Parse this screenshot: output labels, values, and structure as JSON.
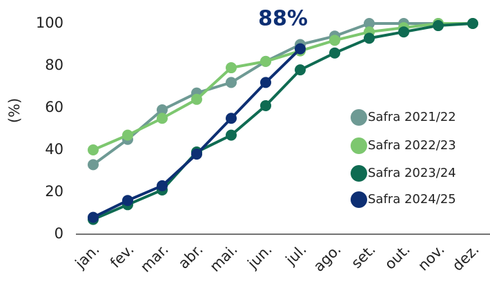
{
  "chart_data": {
    "type": "line",
    "y_label": "(%)",
    "annotation": "88%",
    "categories": [
      "jan.",
      "fev.",
      "mar.",
      "abr.",
      "mai.",
      "jun.",
      "jul.",
      "ago.",
      "set.",
      "out.",
      "nov.",
      "dez."
    ],
    "series": [
      {
        "name": "Safra 2021/22",
        "color": "#6e9a94",
        "values": [
          33,
          45,
          59,
          67,
          72,
          82,
          90,
          94,
          100,
          100,
          100,
          100
        ]
      },
      {
        "name": "Safra 2022/23",
        "color": "#7dc76f",
        "values": [
          40,
          47,
          55,
          64,
          79,
          82,
          87,
          92,
          96,
          98,
          100,
          100
        ]
      },
      {
        "name": "Safra 2023/24",
        "color": "#0f6b52",
        "values": [
          7,
          14,
          21,
          39,
          47,
          61,
          78,
          86,
          93,
          96,
          99,
          100
        ]
      },
      {
        "name": "Safra 2024/25",
        "color": "#0d2f73",
        "values": [
          8,
          16,
          23,
          38,
          55,
          72,
          88,
          null,
          null,
          null,
          null,
          null
        ]
      }
    ],
    "ylim": [
      0,
      100
    ],
    "yticks": [
      0,
      20,
      40,
      60,
      80,
      100
    ],
    "grid": false,
    "legend": "right"
  }
}
